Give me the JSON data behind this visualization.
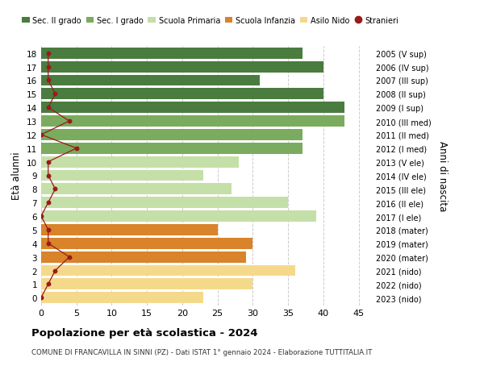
{
  "ages": [
    18,
    17,
    16,
    15,
    14,
    13,
    12,
    11,
    10,
    9,
    8,
    7,
    6,
    5,
    4,
    3,
    2,
    1,
    0
  ],
  "years": [
    "2005 (V sup)",
    "2006 (IV sup)",
    "2007 (III sup)",
    "2008 (II sup)",
    "2009 (I sup)",
    "2010 (III med)",
    "2011 (II med)",
    "2012 (I med)",
    "2013 (V ele)",
    "2014 (IV ele)",
    "2015 (III ele)",
    "2016 (II ele)",
    "2017 (I ele)",
    "2018 (mater)",
    "2019 (mater)",
    "2020 (mater)",
    "2021 (nido)",
    "2022 (nido)",
    "2023 (nido)"
  ],
  "bar_values": [
    37,
    40,
    31,
    40,
    43,
    43,
    37,
    37,
    28,
    23,
    27,
    35,
    39,
    25,
    30,
    29,
    36,
    30,
    23
  ],
  "bar_colors": [
    "#4a7c3f",
    "#4a7c3f",
    "#4a7c3f",
    "#4a7c3f",
    "#4a7c3f",
    "#7aab5e",
    "#7aab5e",
    "#7aab5e",
    "#c5dfa8",
    "#c5dfa8",
    "#c5dfa8",
    "#c5dfa8",
    "#c5dfa8",
    "#d9832a",
    "#d9832a",
    "#d9832a",
    "#f5d98b",
    "#f5d98b",
    "#f5d98b"
  ],
  "stranieri_values": [
    1,
    1,
    1,
    2,
    1,
    4,
    0,
    5,
    1,
    1,
    2,
    1,
    0,
    1,
    1,
    4,
    2,
    1,
    0
  ],
  "legend_labels": [
    "Sec. II grado",
    "Sec. I grado",
    "Scuola Primaria",
    "Scuola Infanzia",
    "Asilo Nido",
    "Stranieri"
  ],
  "legend_colors": [
    "#4a7c3f",
    "#7aab5e",
    "#c5dfa8",
    "#d9832a",
    "#f5d98b",
    "#9b1a1a"
  ],
  "ylabel_left": "Età alunni",
  "ylabel_right": "Anni di nascita",
  "title": "Popolazione per età scolastica - 2024",
  "subtitle": "COMUNE DI FRANCAVILLA IN SINNI (PZ) - Dati ISTAT 1° gennaio 2024 - Elaborazione TUTTITALIA.IT",
  "xlim": [
    0,
    47
  ],
  "bg_color": "#ffffff",
  "grid_color": "#cccccc",
  "bar_height": 0.82
}
